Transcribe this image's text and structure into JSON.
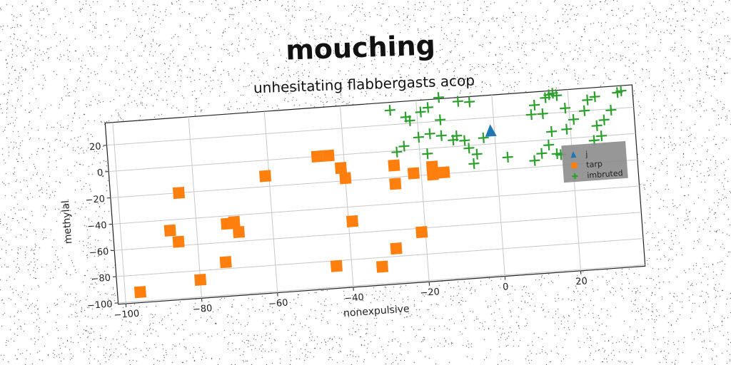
{
  "chart_data": {
    "type": "scatter",
    "title": "mouching",
    "subtitle": "unhesitating flabbergasts acop",
    "xlabel": "nonexpulsive",
    "ylabel": "methylal",
    "xlim": [
      -102,
      37
    ],
    "ylim": [
      -101,
      37
    ],
    "xticks": [
      -100,
      -80,
      -60,
      -40,
      -20,
      0,
      20
    ],
    "yticks": [
      -100,
      -80,
      -60,
      -40,
      -20,
      0,
      20
    ],
    "grid": true,
    "legend_position": "right",
    "series": [
      {
        "name": "j",
        "color": "#1f77b4",
        "marker": "triangle",
        "points": [
          [
            -1,
            10
          ]
        ]
      },
      {
        "name": "tarp",
        "color": "#ff7f0e",
        "marker": "square",
        "points": [
          [
            -84,
            -20
          ],
          [
            -87,
            -48
          ],
          [
            -85,
            -57
          ],
          [
            -96,
            -93
          ],
          [
            -80,
            -87
          ],
          [
            -73,
            -75
          ],
          [
            -70,
            -45
          ],
          [
            -69,
            -53
          ],
          [
            -72,
            -46
          ],
          [
            -61,
            -12
          ],
          [
            -47,
            0
          ],
          [
            -44,
            0
          ],
          [
            -41,
            -10
          ],
          [
            -40,
            -18
          ],
          [
            -39,
            -51
          ],
          [
            -44,
            -84
          ],
          [
            -32,
            -87
          ],
          [
            -28,
            -74
          ],
          [
            -27,
            -11
          ],
          [
            -27,
            -25
          ],
          [
            -22,
            -18
          ],
          [
            -21,
            -63
          ],
          [
            -17,
            -14
          ],
          [
            -17,
            -20
          ],
          [
            -14,
            -19
          ]
        ]
      },
      {
        "name": "imbruted",
        "color": "#2ca02c",
        "marker": "plus",
        "points": [
          [
            -27,
            31
          ],
          [
            -23,
            25
          ],
          [
            -22,
            22
          ],
          [
            -24,
            3
          ],
          [
            -26,
            -1
          ],
          [
            -19,
            28
          ],
          [
            -17,
            31
          ],
          [
            -14,
            38
          ],
          [
            -14,
            21
          ],
          [
            -17,
            11
          ],
          [
            -20,
            9
          ],
          [
            -14,
            9
          ],
          [
            -18,
            -4
          ],
          [
            -9,
            34
          ],
          [
            -6,
            33
          ],
          [
            -11,
            5
          ],
          [
            -8,
            4
          ],
          [
            -10,
            8
          ],
          [
            -7,
            -2
          ],
          [
            -5,
            -7
          ],
          [
            -6,
            -14
          ],
          [
            -3,
            5
          ],
          [
            3,
            -11
          ],
          [
            11,
            27
          ],
          [
            10,
            20
          ],
          [
            13,
            20
          ],
          [
            14,
            32
          ],
          [
            15,
            34
          ],
          [
            16,
            35
          ],
          [
            17,
            33
          ],
          [
            19,
            23
          ],
          [
            21,
            14
          ],
          [
            27,
            30
          ],
          [
            24,
            20
          ],
          [
            19,
            7
          ],
          [
            15,
            6
          ],
          [
            14,
            -4
          ],
          [
            12,
            -10
          ],
          [
            10,
            -15
          ],
          [
            16,
            -11
          ],
          [
            17,
            -12
          ],
          [
            25,
            28
          ],
          [
            29,
            12
          ],
          [
            27,
            8
          ],
          [
            28,
            0
          ],
          [
            26,
            -3
          ],
          [
            31,
            19
          ],
          [
            33,
            32
          ],
          [
            34,
            33
          ]
        ]
      }
    ]
  }
}
